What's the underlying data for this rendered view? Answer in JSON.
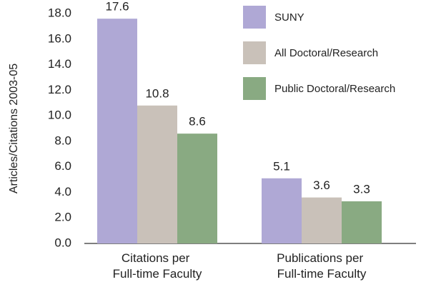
{
  "chart_data": {
    "type": "bar",
    "categories": [
      "Citations per Full-time Faculty",
      "Publications per Full-time Faculty"
    ],
    "series": [
      {
        "name": "SUNY",
        "color": "#afa8d5",
        "values": [
          17.6,
          5.1
        ]
      },
      {
        "name": "All Doctoral/Research",
        "color": "#c9c1b9",
        "values": [
          10.8,
          3.6
        ]
      },
      {
        "name": "Public Doctoral/Research",
        "color": "#89aa82",
        "values": [
          8.6,
          3.3
        ]
      }
    ],
    "ylabel": "Articles/Citations 2003-05",
    "ylim": [
      0,
      18
    ],
    "yticks": [
      {
        "value": 0,
        "label": "0.0"
      },
      {
        "value": 2,
        "label": "2.0"
      },
      {
        "value": 4,
        "label": "4.0"
      },
      {
        "value": 6,
        "label": "6.0"
      },
      {
        "value": 8,
        "label": "8.0"
      },
      {
        "value": 10,
        "label": "10.0"
      },
      {
        "value": 12,
        "label": "12.0"
      },
      {
        "value": 14,
        "label": "14.0"
      },
      {
        "value": 16,
        "label": "16.0"
      },
      {
        "value": 18,
        "label": "18.0"
      }
    ],
    "legend": "top-right"
  }
}
